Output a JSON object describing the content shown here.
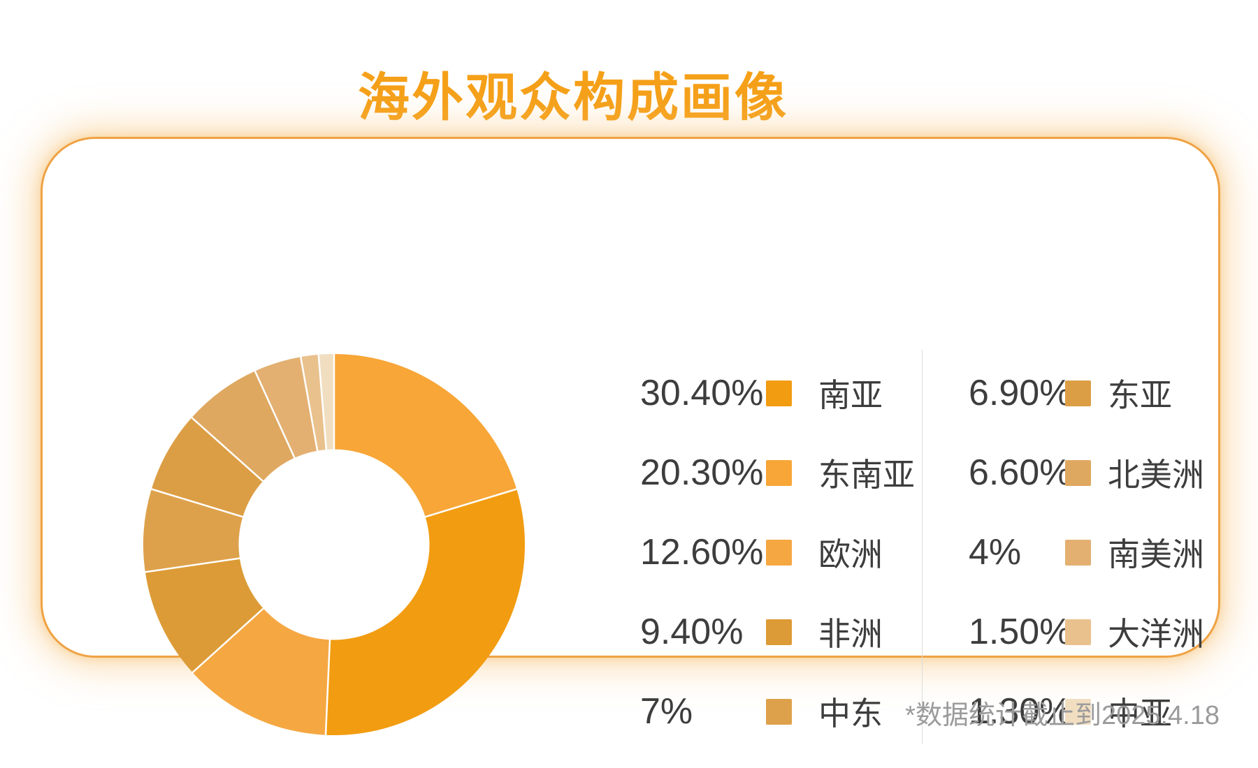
{
  "page": {
    "title": "海外观众构成画像",
    "footnote": "*数据统计截止到2025.4.18"
  },
  "style": {
    "title_color": "#f5a019",
    "text_color": "#3d3d3d",
    "muted_color": "#9b9b9b",
    "divider_color": "#dcdcdc",
    "card_border_color": "#efa244",
    "separator_color": "#ffffff"
  },
  "chart_data": {
    "type": "pie",
    "variant": "donut",
    "title": "海外观众构成画像",
    "unit": "%",
    "inner_radius_ratio": 0.5,
    "start_angle": "top",
    "direction": "clockwise",
    "segments": [
      {
        "label": "南亚",
        "value": 30.4,
        "display": "30.40%",
        "color": "#f29c11"
      },
      {
        "label": "东南亚",
        "value": 20.3,
        "display": "20.30%",
        "color": "#f7a637"
      },
      {
        "label": "欧洲",
        "value": 12.6,
        "display": "12.60%",
        "color": "#f5a742"
      },
      {
        "label": "非洲",
        "value": 9.4,
        "display": "9.40%",
        "color": "#dc9b36"
      },
      {
        "label": "中东",
        "value": 7,
        "display": "7%",
        "color": "#dea14b"
      },
      {
        "label": "东亚",
        "value": 6.9,
        "display": "6.90%",
        "color": "#dc9e45"
      },
      {
        "label": "北美洲",
        "value": 6.6,
        "display": "6.60%",
        "color": "#dfa860"
      },
      {
        "label": "南美洲",
        "value": 4,
        "display": "4%",
        "color": "#e3b072"
      },
      {
        "label": "大洋洲",
        "value": 1.5,
        "display": "1.50%",
        "color": "#e9c18c"
      },
      {
        "label": "中亚",
        "value": 1.3,
        "display": "1.30%",
        "color": "#f1dec1"
      }
    ],
    "draw_order_clockwise_from_top": [
      "东南亚",
      "南亚",
      "欧洲",
      "非洲",
      "中东",
      "东亚",
      "北美洲",
      "南美洲",
      "大洋洲",
      "中亚"
    ],
    "legend_columns": [
      [
        "南亚",
        "东南亚",
        "欧洲",
        "非洲",
        "中东"
      ],
      [
        "东亚",
        "北美洲",
        "南美洲",
        "大洋洲",
        "中亚"
      ]
    ]
  }
}
